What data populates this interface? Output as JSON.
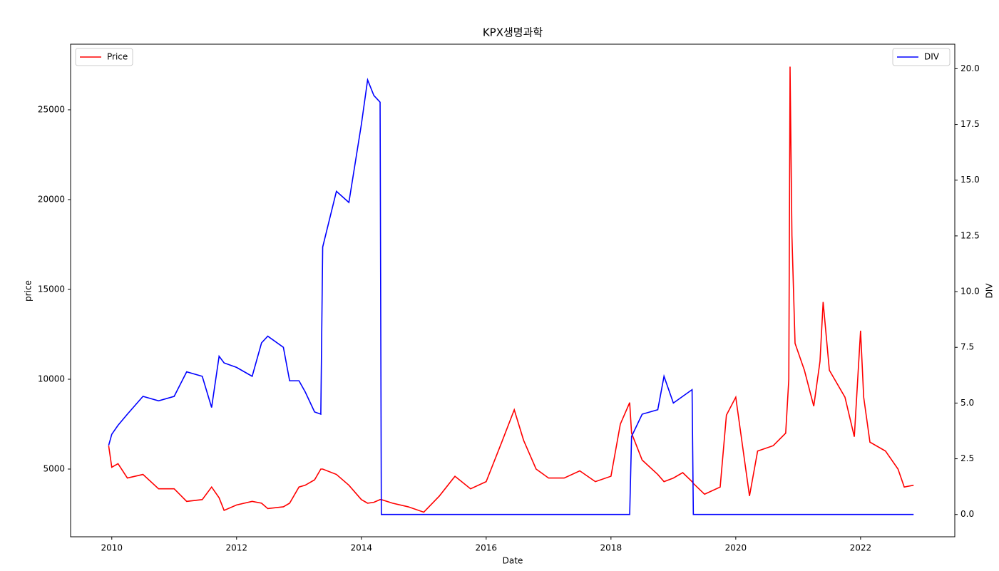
{
  "chart_data": {
    "type": "line",
    "title": "KPX생명과학",
    "x_label": "Date",
    "y_label": "price",
    "y2_label": "DIV",
    "x": [
      2009.95,
      2010.0,
      2010.1,
      2010.25,
      2010.5,
      2010.75,
      2011.0,
      2011.2,
      2011.45,
      2011.6,
      2011.72,
      2011.8,
      2012.0,
      2012.25,
      2012.4,
      2012.5,
      2012.75,
      2012.85,
      2013.0,
      2013.1,
      2013.25,
      2013.35,
      2013.38,
      2013.6,
      2013.8,
      2014.0,
      2014.1,
      2014.2,
      2014.3,
      2014.32,
      2014.5,
      2014.75,
      2015.0,
      2015.25,
      2015.5,
      2015.75,
      2016.0,
      2016.25,
      2016.45,
      2016.6,
      2016.8,
      2017.0,
      2017.25,
      2017.5,
      2017.75,
      2018.0,
      2018.15,
      2018.3,
      2018.33,
      2018.5,
      2018.75,
      2018.85,
      2019.0,
      2019.15,
      2019.3,
      2019.32,
      2019.5,
      2019.75,
      2019.85,
      2020.0,
      2020.1,
      2020.22,
      2020.35,
      2020.6,
      2020.8,
      2020.85,
      2020.87,
      2020.9,
      2020.95,
      2021.1,
      2021.25,
      2021.35,
      2021.4,
      2021.5,
      2021.75,
      2021.9,
      2022.0,
      2022.05,
      2022.15,
      2022.4,
      2022.6,
      2022.7,
      2022.85
    ],
    "series": [
      {
        "name": "Price",
        "color": "#ff0000",
        "values": [
          6300,
          5100,
          5300,
          4500,
          4700,
          3900,
          3900,
          3200,
          3300,
          4000,
          3400,
          2700,
          3000,
          3200,
          3100,
          2800,
          2900,
          3100,
          4000,
          4100,
          4400,
          5000,
          5000,
          4700,
          4100,
          3300,
          3100,
          3150,
          3300,
          3300,
          3100,
          2900,
          2600,
          3500,
          4600,
          3900,
          4300,
          6500,
          8300,
          6600,
          5000,
          4500,
          4500,
          4900,
          4300,
          4600,
          7500,
          8700,
          7000,
          5500,
          4700,
          4300,
          4500,
          4800,
          4300,
          4200,
          3600,
          4000,
          8000,
          9000,
          6500,
          3500,
          6000,
          6300,
          7000,
          10000,
          27400,
          18000,
          12000,
          10500,
          8500,
          11000,
          14300,
          10500,
          9000,
          6800,
          12700,
          9000,
          6500,
          6000,
          5000,
          4000,
          4100
        ]
      },
      {
        "name": "DIV",
        "color": "#0000ff",
        "axis": "y2",
        "values": [
          3.1,
          3.6,
          4.0,
          4.5,
          5.3,
          5.1,
          5.3,
          6.4,
          6.2,
          4.8,
          7.1,
          6.8,
          6.6,
          6.2,
          7.7,
          8.0,
          7.5,
          6.0,
          6.0,
          5.5,
          4.6,
          4.5,
          12.0,
          14.5,
          14.0,
          17.5,
          19.5,
          18.8,
          18.5,
          0,
          0,
          0,
          0,
          0,
          0,
          0,
          0,
          0,
          0,
          0,
          0,
          0,
          0,
          0,
          0,
          0,
          0,
          0,
          3.5,
          4.5,
          4.7,
          6.2,
          5.0,
          5.3,
          5.6,
          0,
          0,
          0,
          0,
          0,
          0,
          0,
          0,
          0,
          0,
          0,
          0,
          0,
          0,
          0,
          0,
          0,
          0,
          0,
          0,
          0,
          0,
          0,
          0,
          0,
          0,
          0,
          0
        ]
      }
    ],
    "xlim": [
      2009.34,
      2023.51
    ],
    "xticks": [
      2010,
      2012,
      2014,
      2016,
      2018,
      2020,
      2022
    ],
    "ylim": [
      1230,
      28650
    ],
    "yticks": [
      5000,
      10000,
      15000,
      20000,
      25000
    ],
    "y2lim": [
      -1,
      21.1
    ],
    "y2ticks": [
      {
        "value": 0,
        "label": "0.0"
      },
      {
        "value": 2.5,
        "label": "2.5"
      },
      {
        "value": 5,
        "label": "5.0"
      },
      {
        "value": 7.5,
        "label": "7.5"
      },
      {
        "value": 10,
        "label": "10.0"
      },
      {
        "value": 12.5,
        "label": "12.5"
      },
      {
        "value": 15,
        "label": "15.0"
      },
      {
        "value": 17.5,
        "label": "17.5"
      },
      {
        "value": 20,
        "label": "20.0"
      }
    ],
    "legend": [
      "upper left",
      "upper right"
    ]
  }
}
